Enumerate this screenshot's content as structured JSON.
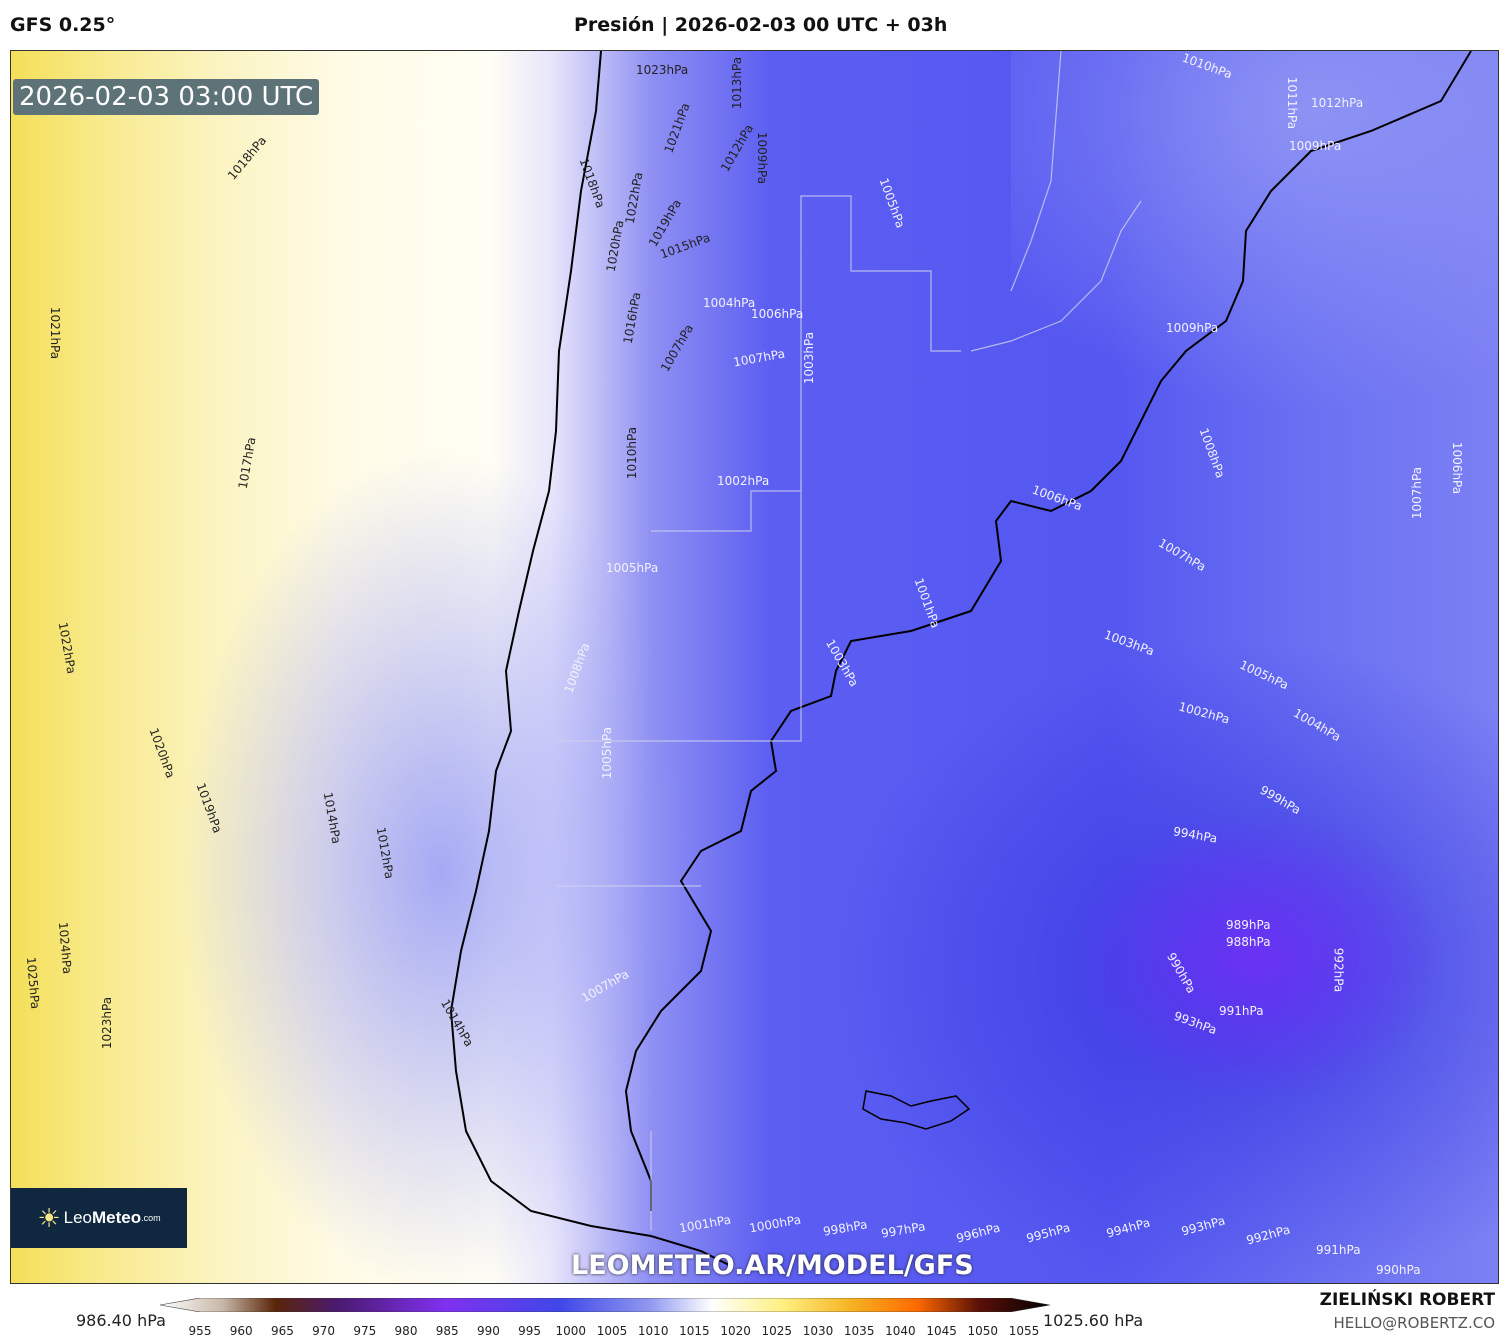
{
  "header": {
    "model": "GFS 0.25°",
    "title": "Presión | 2026-02-03 00 UTC + 03h"
  },
  "map": {
    "timestamp": "2026-02-03 03:00 UTC",
    "watermark_url": "LEOMETEO.AR/MODEL/GFS",
    "logo": {
      "name": "Leo",
      "bold": "Meteo",
      "suffix": ".com"
    },
    "isobar_labels": [
      "1023hPa",
      "1013hPa",
      "1010hPa",
      "1012hPa",
      "1011hPa",
      "1009hPa",
      "1018hPa",
      "1021hPa",
      "1012hPa",
      "1009hPa",
      "1018hPa",
      "1022hPa",
      "1020hPa",
      "1019hPa",
      "1015hPa",
      "1005hPa",
      "1021hPa",
      "1004hPa",
      "1006hPa",
      "1016hPa",
      "1007hPa",
      "1007hPa",
      "1003hPa",
      "1009hPa",
      "1017hPa",
      "1010hPa",
      "1002hPa",
      "1008hPa",
      "1006hPa",
      "1007hPa",
      "1006hPa",
      "1007hPa",
      "1005hPa",
      "1001hPa",
      "1003hPa",
      "1005hPa",
      "1022hPa",
      "1008hPa",
      "1003hPa",
      "1002hPa",
      "1004hPa",
      "1020hPa",
      "1005hPa",
      "999hPa",
      "1019hPa",
      "1014hPa",
      "1012hPa",
      "994hPa",
      "989hPa",
      "988hPa",
      "990hPa",
      "992hPa",
      "991hPa",
      "993hPa",
      "1024hPa",
      "1007hPa",
      "1025hPa",
      "1023hPa",
      "1014hPa",
      "1001hPa",
      "1000hPa",
      "998hPa",
      "997hPa",
      "996hPa",
      "995hPa",
      "994hPa",
      "993hPa",
      "992hPa",
      "991hPa",
      "990hPa"
    ]
  },
  "colorbar": {
    "min_label": "986.40 hPa",
    "max_label": "1025.60 hPa",
    "ticks": [
      "955",
      "960",
      "965",
      "970",
      "975",
      "980",
      "985",
      "990",
      "995",
      "1000",
      "1005",
      "1010",
      "1015",
      "1020",
      "1025",
      "1030",
      "1035",
      "1040",
      "1045",
      "1050",
      "1055"
    ],
    "colors": [
      "#ffffff",
      "#5a2a10",
      "#6a20c0",
      "#8a30f0",
      "#3040e0",
      "#ffffff",
      "#fff080",
      "#ff8000",
      "#000000"
    ]
  },
  "footer": {
    "author": "ZIELIŃSKI ROBERT",
    "email": "HELLO@ROBERTZ.CO"
  }
}
